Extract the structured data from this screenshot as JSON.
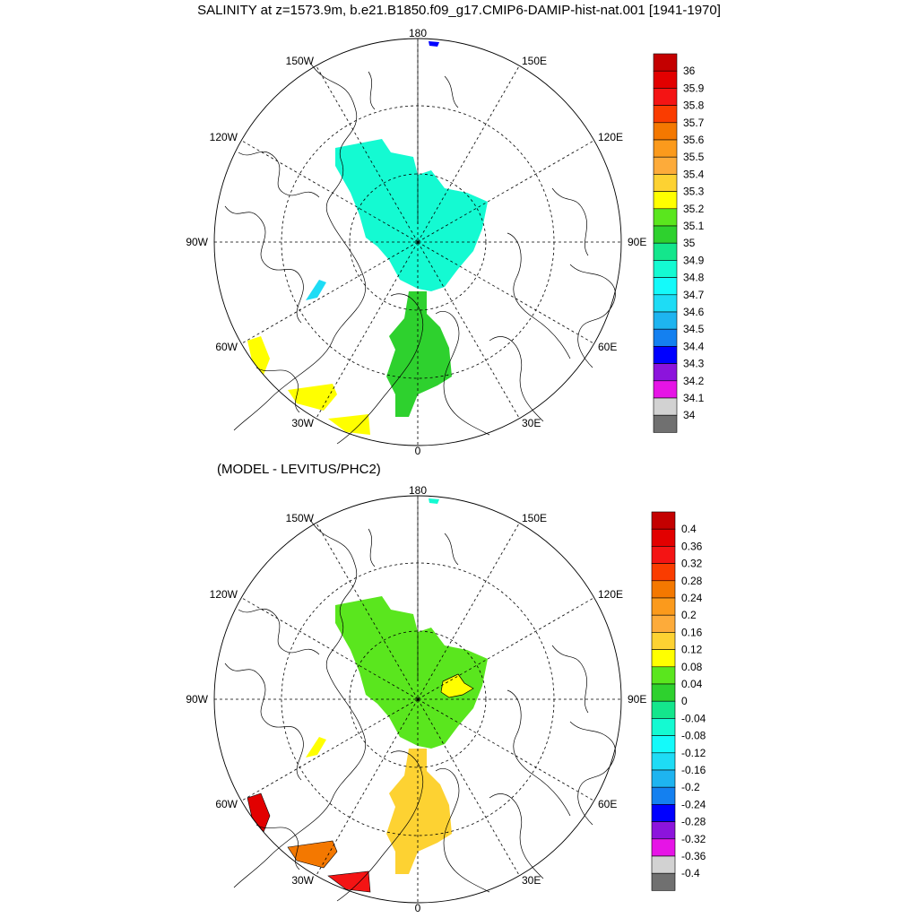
{
  "title": "SALINITY at z=1573.9m, b.e21.B1850.f09_g17.CMIP6-DAMIP-hist-nat.001 [1941-1970]",
  "subtitle": "(MODEL - LEVITUS/PHC2)",
  "longitude_labels": {
    "top": "180",
    "bottom": "0",
    "left_90": "90W",
    "right_90": "90E",
    "upper_left_150": "150W",
    "upper_right_150": "150E",
    "upper_left_120": "120W",
    "upper_right_120": "120E",
    "lower_left_60": "60W",
    "lower_right_60": "60E",
    "lower_left_30": "30W",
    "lower_right_30": "30E"
  },
  "colorbars": {
    "salinity": {
      "labels": [
        "36",
        "35.9",
        "35.8",
        "35.7",
        "35.6",
        "35.5",
        "35.4",
        "35.3",
        "35.2",
        "35.1",
        "35",
        "34.9",
        "34.8",
        "34.7",
        "34.6",
        "34.5",
        "34.4",
        "34.3",
        "34.2",
        "34.1",
        "34"
      ],
      "colors": [
        "#c40000",
        "#e20000",
        "#f41414",
        "#fa3c00",
        "#f47800",
        "#fb9a1c",
        "#fdab3a",
        "#fdd232",
        "#ffff00",
        "#5ae61e",
        "#2ed12e",
        "#14e68c",
        "#14fad2",
        "#14fafa",
        "#1edcf5",
        "#1eb4f0",
        "#1480f0",
        "#0000ff",
        "#8c14dc",
        "#e614e6",
        "#d2d2d2",
        "#707070"
      ]
    },
    "difference": {
      "labels": [
        "0.4",
        "0.36",
        "0.32",
        "0.28",
        "0.24",
        "0.2",
        "0.16",
        "0.12",
        "0.08",
        "0.04",
        "0",
        "-0.04",
        "-0.08",
        "-0.12",
        "-0.16",
        "-0.2",
        "-0.24",
        "-0.28",
        "-0.32",
        "-0.36",
        "-0.4"
      ],
      "colors": [
        "#c40000",
        "#e20000",
        "#f41414",
        "#fa3c00",
        "#f47800",
        "#fb9a1c",
        "#fdab3a",
        "#fdd232",
        "#ffff00",
        "#5ae61e",
        "#2ed12e",
        "#14e68c",
        "#14fad2",
        "#14fafa",
        "#1edcf5",
        "#1eb4f0",
        "#1480f0",
        "#0000ff",
        "#8c14dc",
        "#e614e6",
        "#d2d2d2",
        "#707070"
      ]
    }
  },
  "fields": {
    "salinity": {
      "arctic_basin": "#14fad2",
      "nordic_seas": "#2ed12e",
      "baffin": "#1edcf5",
      "labrador": "#ffff00",
      "atlantic_a": "#ffff00",
      "atlantic_b": "#ffff00",
      "north_pole_spot": "#0000ff"
    },
    "difference": {
      "arctic_basin": "#5ae61e",
      "kara_spot": "#ffff00",
      "nordic_seas": "#fdd232",
      "baffin": "#ffff00",
      "labrador": "#e20000",
      "atlantic_a": "#f47800",
      "atlantic_b": "#f41414",
      "north_pole_spot": "#14fad2"
    }
  }
}
